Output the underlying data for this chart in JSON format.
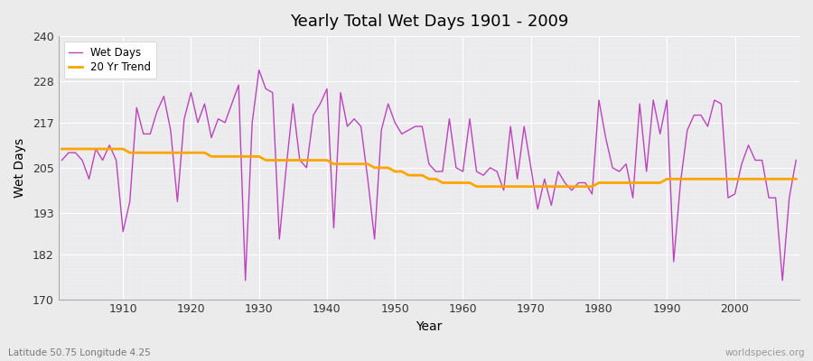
{
  "title": "Yearly Total Wet Days 1901 - 2009",
  "xlabel": "Year",
  "ylabel": "Wet Days",
  "subtitle": "Latitude 50.75 Longitude 4.25",
  "watermark": "worldspecies.org",
  "ylim": [
    170,
    240
  ],
  "yticks": [
    170,
    182,
    193,
    205,
    217,
    228,
    240
  ],
  "xlim": [
    1901,
    2009
  ],
  "xticks": [
    1910,
    1920,
    1930,
    1940,
    1950,
    1960,
    1970,
    1980,
    1990,
    2000
  ],
  "wet_days_color": "#BB44BB",
  "trend_color": "#FFA500",
  "bg_color": "#EBEBEB",
  "plot_bg_color": "#EBEBEE",
  "legend_labels": [
    "Wet Days",
    "20 Yr Trend"
  ],
  "years": [
    1901,
    1902,
    1903,
    1904,
    1905,
    1906,
    1907,
    1908,
    1909,
    1910,
    1911,
    1912,
    1913,
    1914,
    1915,
    1916,
    1917,
    1918,
    1919,
    1920,
    1921,
    1922,
    1923,
    1924,
    1925,
    1926,
    1927,
    1928,
    1929,
    1930,
    1931,
    1932,
    1933,
    1934,
    1935,
    1936,
    1937,
    1938,
    1939,
    1940,
    1941,
    1942,
    1943,
    1944,
    1945,
    1946,
    1947,
    1948,
    1949,
    1950,
    1951,
    1952,
    1953,
    1954,
    1955,
    1956,
    1957,
    1958,
    1959,
    1960,
    1961,
    1962,
    1963,
    1964,
    1965,
    1966,
    1967,
    1968,
    1969,
    1970,
    1971,
    1972,
    1973,
    1974,
    1975,
    1976,
    1977,
    1978,
    1979,
    1980,
    1981,
    1982,
    1983,
    1984,
    1985,
    1986,
    1987,
    1988,
    1989,
    1990,
    1991,
    1992,
    1993,
    1994,
    1995,
    1996,
    1997,
    1998,
    1999,
    2000,
    2001,
    2002,
    2003,
    2004,
    2005,
    2006,
    2007,
    2008,
    2009
  ],
  "wet_days": [
    207,
    209,
    209,
    207,
    202,
    210,
    207,
    211,
    207,
    188,
    196,
    221,
    214,
    214,
    220,
    224,
    215,
    196,
    218,
    225,
    217,
    222,
    213,
    218,
    217,
    222,
    227,
    175,
    217,
    231,
    226,
    225,
    186,
    205,
    222,
    207,
    205,
    219,
    222,
    226,
    189,
    225,
    216,
    218,
    216,
    202,
    186,
    215,
    222,
    217,
    214,
    215,
    216,
    216,
    206,
    204,
    204,
    218,
    205,
    204,
    218,
    204,
    203,
    205,
    204,
    199,
    216,
    202,
    216,
    205,
    194,
    202,
    195,
    204,
    201,
    199,
    201,
    201,
    198,
    223,
    213,
    205,
    204,
    206,
    197,
    222,
    204,
    223,
    214,
    223,
    180,
    201,
    215,
    219,
    219,
    216,
    223,
    222,
    197,
    198,
    206,
    211,
    207,
    207,
    197,
    197,
    175,
    197,
    207
  ],
  "trend": [
    210,
    210,
    210,
    210,
    210,
    210,
    210,
    210,
    210,
    210,
    209,
    209,
    209,
    209,
    209,
    209,
    209,
    209,
    209,
    209,
    209,
    209,
    208,
    208,
    208,
    208,
    208,
    208,
    208,
    208,
    207,
    207,
    207,
    207,
    207,
    207,
    207,
    207,
    207,
    207,
    206,
    206,
    206,
    206,
    206,
    206,
    205,
    205,
    205,
    204,
    204,
    203,
    203,
    203,
    202,
    202,
    201,
    201,
    201,
    201,
    201,
    200,
    200,
    200,
    200,
    200,
    200,
    200,
    200,
    200,
    200,
    200,
    200,
    200,
    200,
    200,
    200,
    200,
    200,
    201,
    201,
    201,
    201,
    201,
    201,
    201,
    201,
    201,
    201,
    202,
    202,
    202,
    202,
    202,
    202,
    202,
    202,
    202,
    202,
    202,
    202,
    202,
    202,
    202,
    202,
    202,
    202,
    202,
    202
  ]
}
